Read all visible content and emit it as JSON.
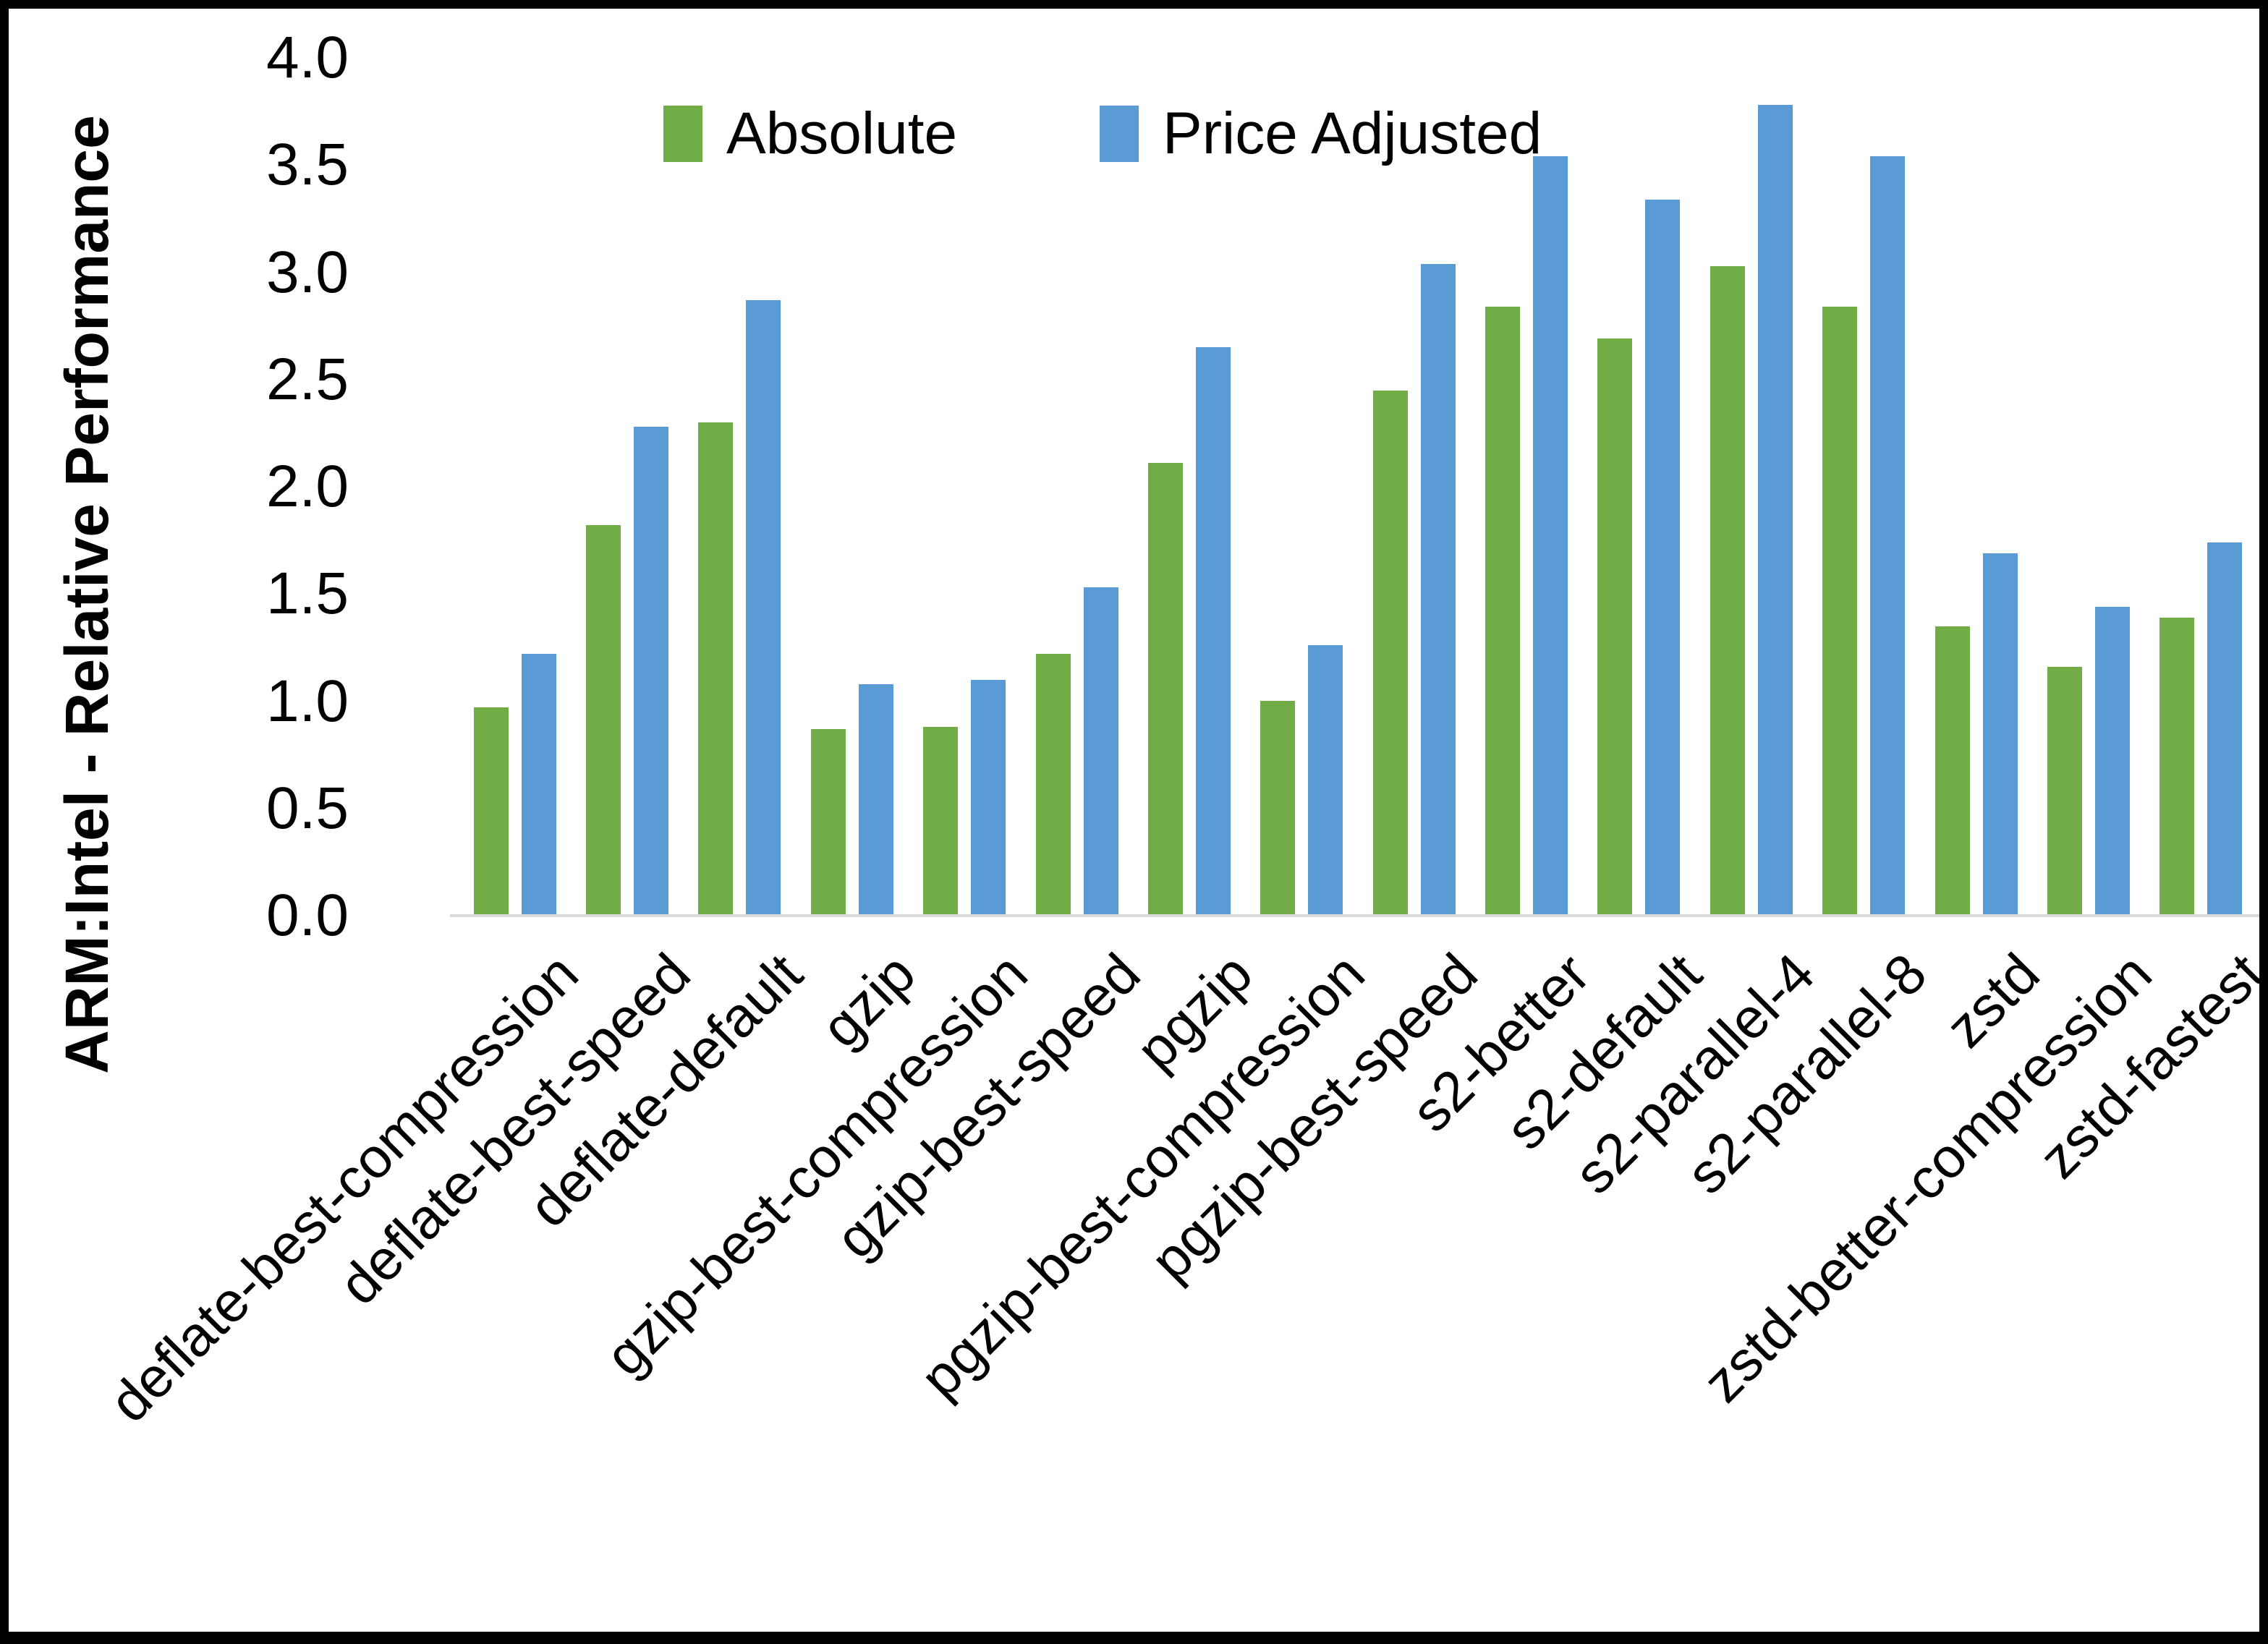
{
  "page": {
    "background": "#ffffff",
    "border_color": "#000000"
  },
  "chart_data": {
    "type": "bar",
    "title": "",
    "xlabel": "",
    "ylabel": "ARM:Intel - Relative Performance",
    "ylim": [
      0,
      4
    ],
    "ytick_step": 0.5,
    "yticks": [
      "4.0",
      "3.5",
      "3.0",
      "2.5",
      "2.0",
      "1.5",
      "1.0",
      "0.5",
      "0.0"
    ],
    "grid": false,
    "legend_position": "top-center",
    "axis_line_color": "#d9d9d9",
    "categories": [
      "deflate-best-compression",
      "deflate-best-speed",
      "deflate-default",
      "gzip",
      "gzip-best-compression",
      "gzip-best-speed",
      "pgzip",
      "pgzip-best-compression",
      "pgzip-best-speed",
      "s2-better",
      "s2-default",
      "s2-parallel-4",
      "s2-parallel-8",
      "zstd",
      "zstd-better-compression",
      "zstd-fastest"
    ],
    "series": [
      {
        "name": "Absolute",
        "color": "#70AD47",
        "values": [
          0.97,
          1.82,
          2.3,
          0.87,
          0.88,
          1.22,
          2.11,
          1.0,
          2.45,
          2.84,
          2.69,
          3.03,
          2.84,
          1.35,
          1.16,
          1.39
        ]
      },
      {
        "name": "Price Adjusted",
        "color": "#5B9BD5",
        "values": [
          1.22,
          2.28,
          2.87,
          1.08,
          1.1,
          1.53,
          2.65,
          1.26,
          3.04,
          3.54,
          3.34,
          3.78,
          3.54,
          1.69,
          1.44,
          1.74
        ]
      }
    ]
  }
}
